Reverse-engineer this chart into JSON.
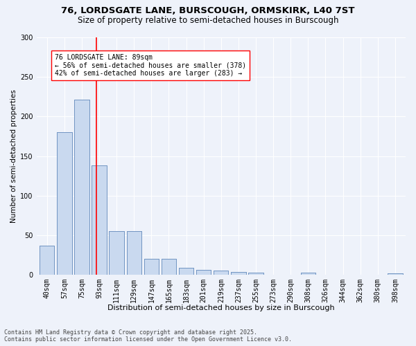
{
  "title1": "76, LORDSGATE LANE, BURSCOUGH, ORMSKIRK, L40 7ST",
  "title2": "Size of property relative to semi-detached houses in Burscough",
  "xlabel": "Distribution of semi-detached houses by size in Burscough",
  "ylabel": "Number of semi-detached properties",
  "categories": [
    "40sqm",
    "57sqm",
    "75sqm",
    "93sqm",
    "111sqm",
    "129sqm",
    "147sqm",
    "165sqm",
    "183sqm",
    "201sqm",
    "219sqm",
    "237sqm",
    "255sqm",
    "273sqm",
    "290sqm",
    "308sqm",
    "326sqm",
    "344sqm",
    "362sqm",
    "380sqm",
    "398sqm"
  ],
  "values": [
    37,
    180,
    221,
    138,
    55,
    55,
    20,
    20,
    9,
    6,
    5,
    4,
    3,
    0,
    0,
    3,
    0,
    0,
    0,
    0,
    2
  ],
  "bar_color": "#c9d9ef",
  "bar_edge_color": "#6a8fbf",
  "bar_width": 0.85,
  "vline_position": 2.82,
  "vline_color": "red",
  "annotation_text": "76 LORDSGATE LANE: 89sqm\n← 56% of semi-detached houses are smaller (378)\n42% of semi-detached houses are larger (283) →",
  "annotation_box_color": "white",
  "annotation_box_edge_color": "red",
  "ylim": [
    0,
    300
  ],
  "yticks": [
    0,
    50,
    100,
    150,
    200,
    250,
    300
  ],
  "footnote": "Contains HM Land Registry data © Crown copyright and database right 2025.\nContains public sector information licensed under the Open Government Licence v3.0.",
  "bg_color": "#eef2fa",
  "grid_color": "#ffffff",
  "title1_fontsize": 9.5,
  "title2_fontsize": 8.5,
  "xlabel_fontsize": 8,
  "ylabel_fontsize": 7.5,
  "tick_fontsize": 7,
  "annotation_fontsize": 7,
  "footnote_fontsize": 6
}
